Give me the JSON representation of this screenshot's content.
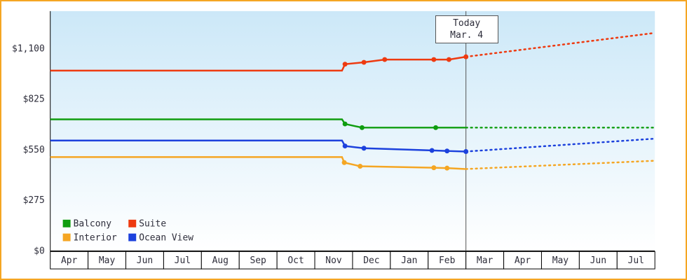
{
  "frame": {
    "border_color": "#f5a623",
    "background": "#ffffff"
  },
  "today": {
    "line1": "Today",
    "line2": "Mar. 4"
  },
  "chart_data": {
    "type": "line",
    "title": "",
    "xlabel": "",
    "ylabel": "",
    "grid": false,
    "legend_position": "bottom-left-inside",
    "x_categories": [
      "Apr",
      "May",
      "Jun",
      "Jul",
      "Aug",
      "Sep",
      "Oct",
      "Nov",
      "Dec",
      "Jan",
      "Feb",
      "Mar",
      "Apr",
      "May",
      "Jun",
      "Jul"
    ],
    "x_range_months": 16,
    "today_t": 11,
    "ylim": [
      0,
      1100
    ],
    "yticks": [
      {
        "v": 0,
        "label": "$0"
      },
      {
        "v": 275,
        "label": "$275"
      },
      {
        "v": 550,
        "label": "$550"
      },
      {
        "v": 825,
        "label": "$825"
      },
      {
        "v": 1100,
        "label": "$1,100"
      }
    ],
    "plot_bg_top": "#cce8f8",
    "plot_bg_bottom": "#ffffff",
    "axis_color": "#000000",
    "today_line_color": "#555555",
    "series": [
      {
        "name": "Balcony",
        "color": "#0f9d0f",
        "solid": [
          [
            0,
            715
          ],
          [
            7.72,
            715
          ],
          [
            7.8,
            690,
            1
          ],
          [
            8.25,
            670,
            1
          ],
          [
            10.2,
            670,
            1
          ],
          [
            11,
            670
          ]
        ],
        "forecast": [
          [
            11,
            670
          ],
          [
            16,
            670
          ]
        ]
      },
      {
        "name": "Suite",
        "color": "#ee3a10",
        "solid": [
          [
            0,
            980
          ],
          [
            7.72,
            980
          ],
          [
            7.8,
            1015,
            1
          ],
          [
            8.3,
            1025,
            1
          ],
          [
            8.85,
            1040,
            1
          ],
          [
            10.15,
            1040,
            1
          ],
          [
            10.55,
            1040,
            1
          ],
          [
            11,
            1055,
            1
          ]
        ],
        "forecast": [
          [
            11,
            1055
          ],
          [
            16,
            1185
          ]
        ]
      },
      {
        "name": "Interior",
        "color": "#f5a623",
        "solid": [
          [
            0,
            510
          ],
          [
            7.72,
            510
          ],
          [
            7.78,
            480,
            1
          ],
          [
            8.2,
            460,
            1
          ],
          [
            10.15,
            452,
            1
          ],
          [
            10.5,
            450,
            1
          ],
          [
            11,
            445
          ]
        ],
        "forecast": [
          [
            11,
            445
          ],
          [
            16,
            490
          ]
        ]
      },
      {
        "name": "Ocean View",
        "color": "#1c41dd",
        "solid": [
          [
            0,
            600
          ],
          [
            7.72,
            600
          ],
          [
            7.8,
            570,
            1
          ],
          [
            8.3,
            558,
            1
          ],
          [
            10.1,
            546,
            1
          ],
          [
            10.5,
            543,
            1
          ],
          [
            11,
            540,
            1
          ]
        ],
        "forecast": [
          [
            11,
            540
          ],
          [
            16,
            610
          ]
        ]
      }
    ]
  }
}
